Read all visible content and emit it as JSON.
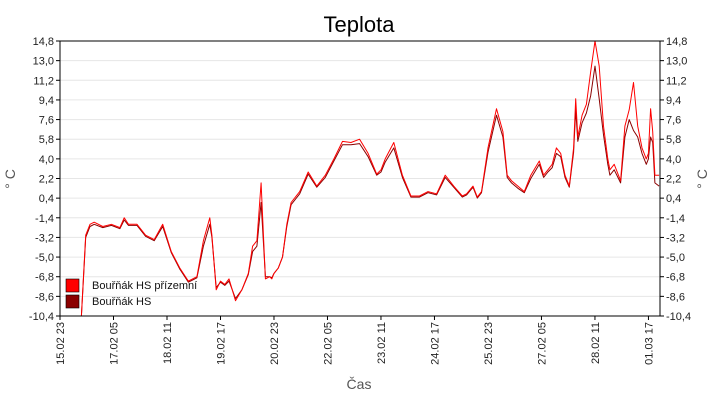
{
  "chart_data": {
    "type": "line",
    "title": "Teplota",
    "xlabel": "Čas",
    "ylabel": "° C",
    "ylim": [
      -10.4,
      14.8
    ],
    "yticks": [
      "14,8",
      "13,0",
      "11,2",
      "9,4",
      "7,6",
      "5,8",
      "4,0",
      "2,2",
      "0,4",
      "-1,4",
      "-3,2",
      "-5,0",
      "-6,8",
      "-8,6",
      "-10,4"
    ],
    "ytick_values": [
      14.8,
      13.0,
      11.2,
      9.4,
      7.6,
      5.8,
      4.0,
      2.2,
      0.4,
      -1.4,
      -3.2,
      -5.0,
      -6.8,
      -8.6,
      -10.4
    ],
    "xlim": [
      0,
      14.02
    ],
    "xticks": [
      "15.02 23",
      "17.02 05",
      "18.02 11",
      "19.02 17",
      "20.02 23",
      "22.02 05",
      "23.02 11",
      "24.02 17",
      "25.02 23",
      "27.02 05",
      "28.02 11",
      "01.03 17"
    ],
    "xtick_values": [
      0,
      1.25,
      2.5,
      3.75,
      5.0,
      6.25,
      7.5,
      8.75,
      10.0,
      11.25,
      12.5,
      13.75
    ],
    "grid": true,
    "legend_position": "bottom-left",
    "series": [
      {
        "name": "Bouřňák HS přízemní",
        "color": "#ff0000",
        "x": [
          0,
          0.5,
          0.6,
          0.7,
          0.8,
          1.0,
          1.2,
          1.4,
          1.5,
          1.6,
          1.8,
          2.0,
          2.2,
          2.4,
          2.6,
          2.8,
          3.0,
          3.2,
          3.35,
          3.5,
          3.55,
          3.65,
          3.75,
          3.85,
          3.95,
          4.1,
          4.25,
          4.4,
          4.5,
          4.6,
          4.7,
          4.8,
          4.9,
          4.95,
          5.0,
          5.1,
          5.2,
          5.3,
          5.4,
          5.6,
          5.8,
          6.0,
          6.2,
          6.4,
          6.6,
          6.8,
          7.0,
          7.2,
          7.4,
          7.5,
          7.6,
          7.8,
          8.0,
          8.2,
          8.4,
          8.6,
          8.8,
          9.0,
          9.2,
          9.4,
          9.5,
          9.65,
          9.75,
          9.85,
          10.0,
          10.2,
          10.35,
          10.45,
          10.55,
          10.7,
          10.85,
          11.0,
          11.2,
          11.3,
          11.4,
          11.5,
          11.6,
          11.7,
          11.8,
          11.9,
          12.0,
          12.05,
          12.1,
          12.2,
          12.3,
          12.4,
          12.5,
          12.6,
          12.7,
          12.8,
          12.85,
          12.95,
          13.1,
          13.2,
          13.3,
          13.4,
          13.5,
          13.6,
          13.7,
          13.75,
          13.8,
          13.85,
          13.9,
          14.0
        ],
        "y": [
          -10.4,
          -10.4,
          -3.0,
          -2.0,
          -1.8,
          -2.2,
          -2.0,
          -2.3,
          -1.4,
          -2.0,
          -2.0,
          -3.0,
          -3.4,
          -2.0,
          -4.5,
          -6.0,
          -7.2,
          -6.8,
          -3.5,
          -1.4,
          -3.0,
          -8.0,
          -7.2,
          -7.5,
          -7.0,
          -9.0,
          -8.0,
          -6.5,
          -4.0,
          -3.5,
          1.8,
          -7.0,
          -6.8,
          -7.0,
          -6.5,
          -6.0,
          -5.0,
          -2.0,
          0.0,
          1.0,
          2.8,
          1.5,
          2.5,
          4.0,
          5.6,
          5.5,
          5.8,
          4.5,
          2.6,
          3.0,
          4.0,
          5.5,
          2.5,
          0.6,
          0.6,
          1.0,
          0.8,
          2.5,
          1.5,
          0.6,
          0.8,
          1.5,
          0.5,
          1.0,
          5.0,
          8.6,
          6.5,
          2.5,
          2.0,
          1.5,
          1.0,
          2.5,
          3.8,
          2.5,
          3.0,
          3.5,
          5.0,
          4.5,
          2.5,
          1.5,
          5.0,
          9.5,
          6.0,
          8.0,
          9.0,
          12.0,
          14.8,
          12.5,
          7.0,
          4.0,
          3.0,
          3.5,
          2.0,
          7.0,
          8.5,
          11.0,
          7.0,
          5.0,
          4.0,
          4.5,
          8.6,
          6.5,
          2.5,
          2.5
        ]
      },
      {
        "name": "Bouřňák HS",
        "color": "#8b0000",
        "x": [
          0,
          0.5,
          0.6,
          0.7,
          0.8,
          1.0,
          1.2,
          1.4,
          1.5,
          1.6,
          1.8,
          2.0,
          2.2,
          2.4,
          2.6,
          2.8,
          3.0,
          3.2,
          3.35,
          3.5,
          3.55,
          3.65,
          3.75,
          3.85,
          3.95,
          4.1,
          4.25,
          4.4,
          4.5,
          4.6,
          4.7,
          4.8,
          4.9,
          4.95,
          5.0,
          5.1,
          5.2,
          5.3,
          5.4,
          5.6,
          5.8,
          6.0,
          6.2,
          6.4,
          6.6,
          6.8,
          7.0,
          7.2,
          7.4,
          7.5,
          7.6,
          7.8,
          8.0,
          8.2,
          8.4,
          8.6,
          8.8,
          9.0,
          9.2,
          9.4,
          9.5,
          9.65,
          9.75,
          9.85,
          10.0,
          10.2,
          10.35,
          10.45,
          10.55,
          10.7,
          10.85,
          11.0,
          11.2,
          11.3,
          11.4,
          11.5,
          11.6,
          11.7,
          11.8,
          11.9,
          12.0,
          12.05,
          12.1,
          12.2,
          12.3,
          12.4,
          12.5,
          12.6,
          12.7,
          12.8,
          12.85,
          12.95,
          13.1,
          13.2,
          13.3,
          13.4,
          13.5,
          13.6,
          13.7,
          13.75,
          13.8,
          13.85,
          13.9,
          14.0
        ],
        "y": [
          -10.4,
          -10.4,
          -3.2,
          -2.2,
          -2.0,
          -2.3,
          -2.1,
          -2.4,
          -1.6,
          -2.1,
          -2.1,
          -3.1,
          -3.5,
          -2.2,
          -4.6,
          -6.1,
          -7.3,
          -6.9,
          -4.0,
          -2.0,
          -3.2,
          -7.8,
          -7.3,
          -7.6,
          -7.2,
          -8.8,
          -8.0,
          -6.6,
          -4.5,
          -4.0,
          0.0,
          -6.8,
          -6.8,
          -6.9,
          -6.5,
          -6.0,
          -5.0,
          -2.2,
          -0.2,
          0.8,
          2.6,
          1.4,
          2.3,
          3.8,
          5.3,
          5.3,
          5.4,
          4.2,
          2.5,
          2.8,
          3.7,
          5.0,
          2.3,
          0.5,
          0.5,
          0.9,
          0.7,
          2.3,
          1.4,
          0.5,
          0.7,
          1.4,
          0.4,
          0.9,
          4.6,
          8.0,
          6.0,
          2.3,
          1.8,
          1.3,
          0.9,
          2.2,
          3.5,
          2.3,
          2.8,
          3.2,
          4.5,
          4.2,
          2.3,
          1.4,
          4.6,
          8.5,
          5.6,
          7.3,
          8.2,
          9.8,
          12.5,
          9.5,
          6.2,
          3.5,
          2.5,
          3.0,
          1.8,
          6.0,
          7.6,
          6.6,
          6.0,
          4.5,
          3.5,
          4.0,
          6.0,
          5.5,
          1.8,
          1.5
        ]
      }
    ]
  }
}
